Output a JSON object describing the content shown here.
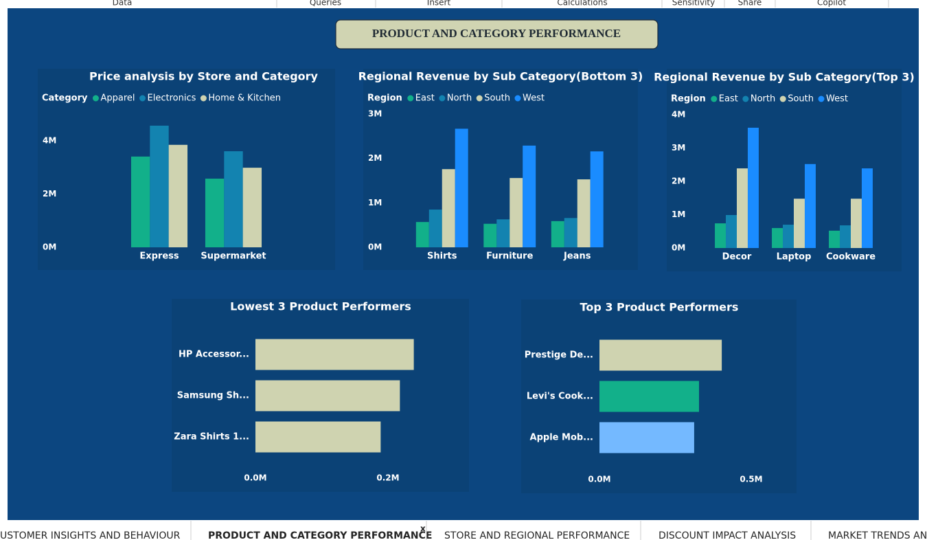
{
  "ribbon": [
    "Data",
    "Queries",
    "Insert",
    "Calculations",
    "Sensitivity",
    "Share",
    "Copilot"
  ],
  "header": {
    "title": "PRODUCT AND CATEGORY PERFORMANCE"
  },
  "chart_data": [
    {
      "type": "bar",
      "title": "Price analysis by Store and Category",
      "legend_title": "Category",
      "categories": [
        "Express",
        "Supermarket"
      ],
      "series": [
        {
          "name": "Apparel",
          "color": "#12b08a",
          "values": [
            3.41,
            2.58
          ]
        },
        {
          "name": "Electronics",
          "color": "#1383b0",
          "values": [
            4.57,
            3.61
          ]
        },
        {
          "name": "Home & Kitchen",
          "color": "#cfd3b0",
          "values": [
            3.85,
            2.99
          ]
        }
      ],
      "ylim": [
        0,
        4.8
      ],
      "yticks": [
        {
          "value": 0,
          "label": "0M"
        },
        {
          "value": 2,
          "label": "2M"
        },
        {
          "value": 4,
          "label": "4M"
        }
      ]
    },
    {
      "type": "bar",
      "title": "Regional Revenue by Sub Category(Bottom 3)",
      "legend_title": "Region",
      "categories": [
        "Shirts",
        "Furniture",
        "Jeans"
      ],
      "series": [
        {
          "name": "East",
          "color": "#12b08a",
          "values": [
            0.57,
            0.53,
            0.59
          ]
        },
        {
          "name": "North",
          "color": "#1383b0",
          "values": [
            0.85,
            0.63,
            0.66
          ]
        },
        {
          "name": "South",
          "color": "#cfd3b0",
          "values": [
            1.76,
            1.56,
            1.53
          ]
        },
        {
          "name": "West",
          "color": "#1a8cff",
          "values": [
            2.67,
            2.29,
            2.16
          ]
        }
      ],
      "ylim": [
        0,
        3
      ],
      "yticks": [
        {
          "value": 0,
          "label": "0M"
        },
        {
          "value": 1,
          "label": "1M"
        },
        {
          "value": 2,
          "label": "2M"
        },
        {
          "value": 3,
          "label": "3M"
        }
      ]
    },
    {
      "type": "bar",
      "title": "Regional Revenue by Sub Category(Top 3)",
      "legend_title": "Region",
      "categories": [
        "Decor",
        "Laptop",
        "Cookware"
      ],
      "series": [
        {
          "name": "East",
          "color": "#12b08a",
          "values": [
            0.74,
            0.6,
            0.52
          ]
        },
        {
          "name": "North",
          "color": "#1383b0",
          "values": [
            0.99,
            0.7,
            0.68
          ]
        },
        {
          "name": "South",
          "color": "#cfd3b0",
          "values": [
            2.39,
            1.48,
            1.48
          ]
        },
        {
          "name": "West",
          "color": "#1a8cff",
          "values": [
            3.61,
            2.52,
            2.39
          ]
        }
      ],
      "ylim": [
        0,
        4
      ],
      "yticks": [
        {
          "value": 0,
          "label": "0M"
        },
        {
          "value": 1,
          "label": "1M"
        },
        {
          "value": 2,
          "label": "2M"
        },
        {
          "value": 3,
          "label": "3M"
        },
        {
          "value": 4,
          "label": "4M"
        }
      ]
    },
    {
      "type": "hbar",
      "title": "Lowest 3 Product Performers",
      "categories": [
        "HP Accessor...",
        "Samsung Sh...",
        "Zara Shirts 1..."
      ],
      "values": [
        0.239,
        0.218,
        0.189
      ],
      "colors": [
        "#cfd3b0",
        "#cfd3b0",
        "#cfd3b0"
      ],
      "xlim": [
        0,
        0.25
      ],
      "xticks": [
        {
          "value": 0,
          "label": "0.0M"
        },
        {
          "value": 0.2,
          "label": "0.2M"
        }
      ]
    },
    {
      "type": "hbar",
      "title": "Top 3 Product Performers",
      "categories": [
        "Prestige De...",
        "Levi's Cook...",
        "Apple Mob..."
      ],
      "values": [
        0.403,
        0.328,
        0.312
      ],
      "colors": [
        "#cfd3b0",
        "#12b08a",
        "#74b9ff"
      ],
      "xlim": [
        0,
        0.55
      ],
      "xticks": [
        {
          "value": 0,
          "label": "0.0M"
        },
        {
          "value": 0.5,
          "label": "0.5M"
        }
      ]
    }
  ],
  "tabs": [
    "USTOMER INSIGHTS AND BEHAVIOUR",
    "PRODUCT AND CATEGORY PERFORMANCE",
    "STORE AND REGIONAL PERFORMANCE",
    "DISCOUNT IMPACT ANALYSIS",
    "MARKET TRENDS AND"
  ],
  "close_tab": "x"
}
